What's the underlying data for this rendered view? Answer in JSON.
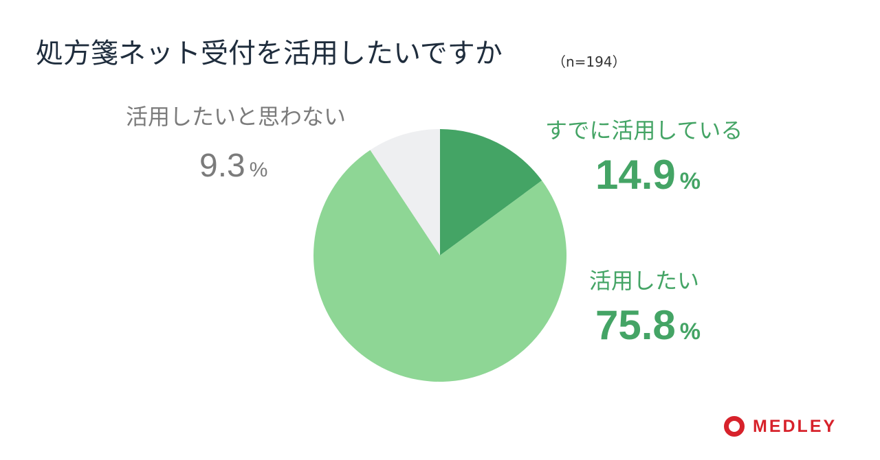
{
  "header": {
    "title": "処方箋ネット受付を活用したいですか",
    "sample_size": "（n=194）"
  },
  "chart_data": {
    "type": "pie",
    "title": "処方箋ネット受付を活用したいですか",
    "sample_size": "n=194",
    "unit": "%",
    "start_angle_deg": 0,
    "direction": "clockwise",
    "slices": [
      {
        "label": "すでに活用している",
        "value": 14.9,
        "display": "14.9",
        "color": "#44a465"
      },
      {
        "label": "活用したい",
        "value": 75.8,
        "display": "75.8",
        "color": "#8ed695"
      },
      {
        "label": "活用したいと思わない",
        "value": 9.3,
        "display": "9.3",
        "color": "#eeeff1"
      }
    ],
    "label_colors": {
      "already_using": "#44a465",
      "want_to_use": "#44a465",
      "do_not_want": "#7b7b7b"
    }
  },
  "brand": {
    "logo_text": "MEDLEY",
    "color": "#d7222b",
    "icon": "medley-logo-icon"
  }
}
